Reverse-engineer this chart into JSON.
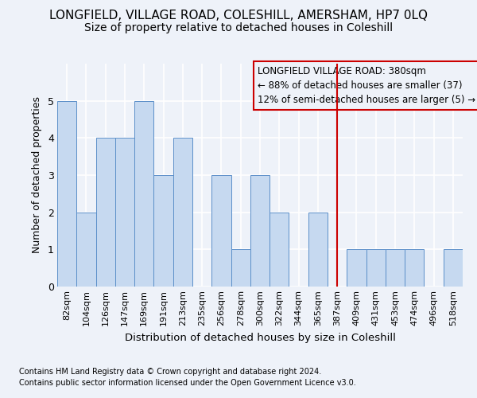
{
  "title": "LONGFIELD, VILLAGE ROAD, COLESHILL, AMERSHAM, HP7 0LQ",
  "subtitle": "Size of property relative to detached houses in Coleshill",
  "xlabel": "Distribution of detached houses by size in Coleshill",
  "ylabel": "Number of detached properties",
  "categories": [
    "82sqm",
    "104sqm",
    "126sqm",
    "147sqm",
    "169sqm",
    "191sqm",
    "213sqm",
    "235sqm",
    "256sqm",
    "278sqm",
    "300sqm",
    "322sqm",
    "344sqm",
    "365sqm",
    "387sqm",
    "409sqm",
    "431sqm",
    "453sqm",
    "474sqm",
    "496sqm",
    "518sqm"
  ],
  "values": [
    5,
    2,
    4,
    4,
    5,
    3,
    4,
    0,
    3,
    1,
    3,
    2,
    0,
    2,
    0,
    1,
    1,
    1,
    1,
    0,
    1
  ],
  "bar_color": "#c6d9f0",
  "bar_edge_color": "#5b8fc9",
  "vline_x_index": 14,
  "vline_color": "#cc0000",
  "legend_title": "LONGFIELD VILLAGE ROAD: 380sqm",
  "legend_line1": "← 88% of detached houses are smaller (37)",
  "legend_line2": "12% of semi-detached houses are larger (5) →",
  "legend_box_color": "#cc0000",
  "footnote1": "Contains HM Land Registry data © Crown copyright and database right 2024.",
  "footnote2": "Contains public sector information licensed under the Open Government Licence v3.0.",
  "ylim": [
    0,
    6
  ],
  "background_color": "#eef2f9",
  "grid_color": "#ffffff",
  "title_fontsize": 11,
  "subtitle_fontsize": 10,
  "tick_fontsize": 8,
  "ylabel_fontsize": 9,
  "xlabel_fontsize": 9.5,
  "footnote_fontsize": 7,
  "legend_fontsize": 8.5
}
